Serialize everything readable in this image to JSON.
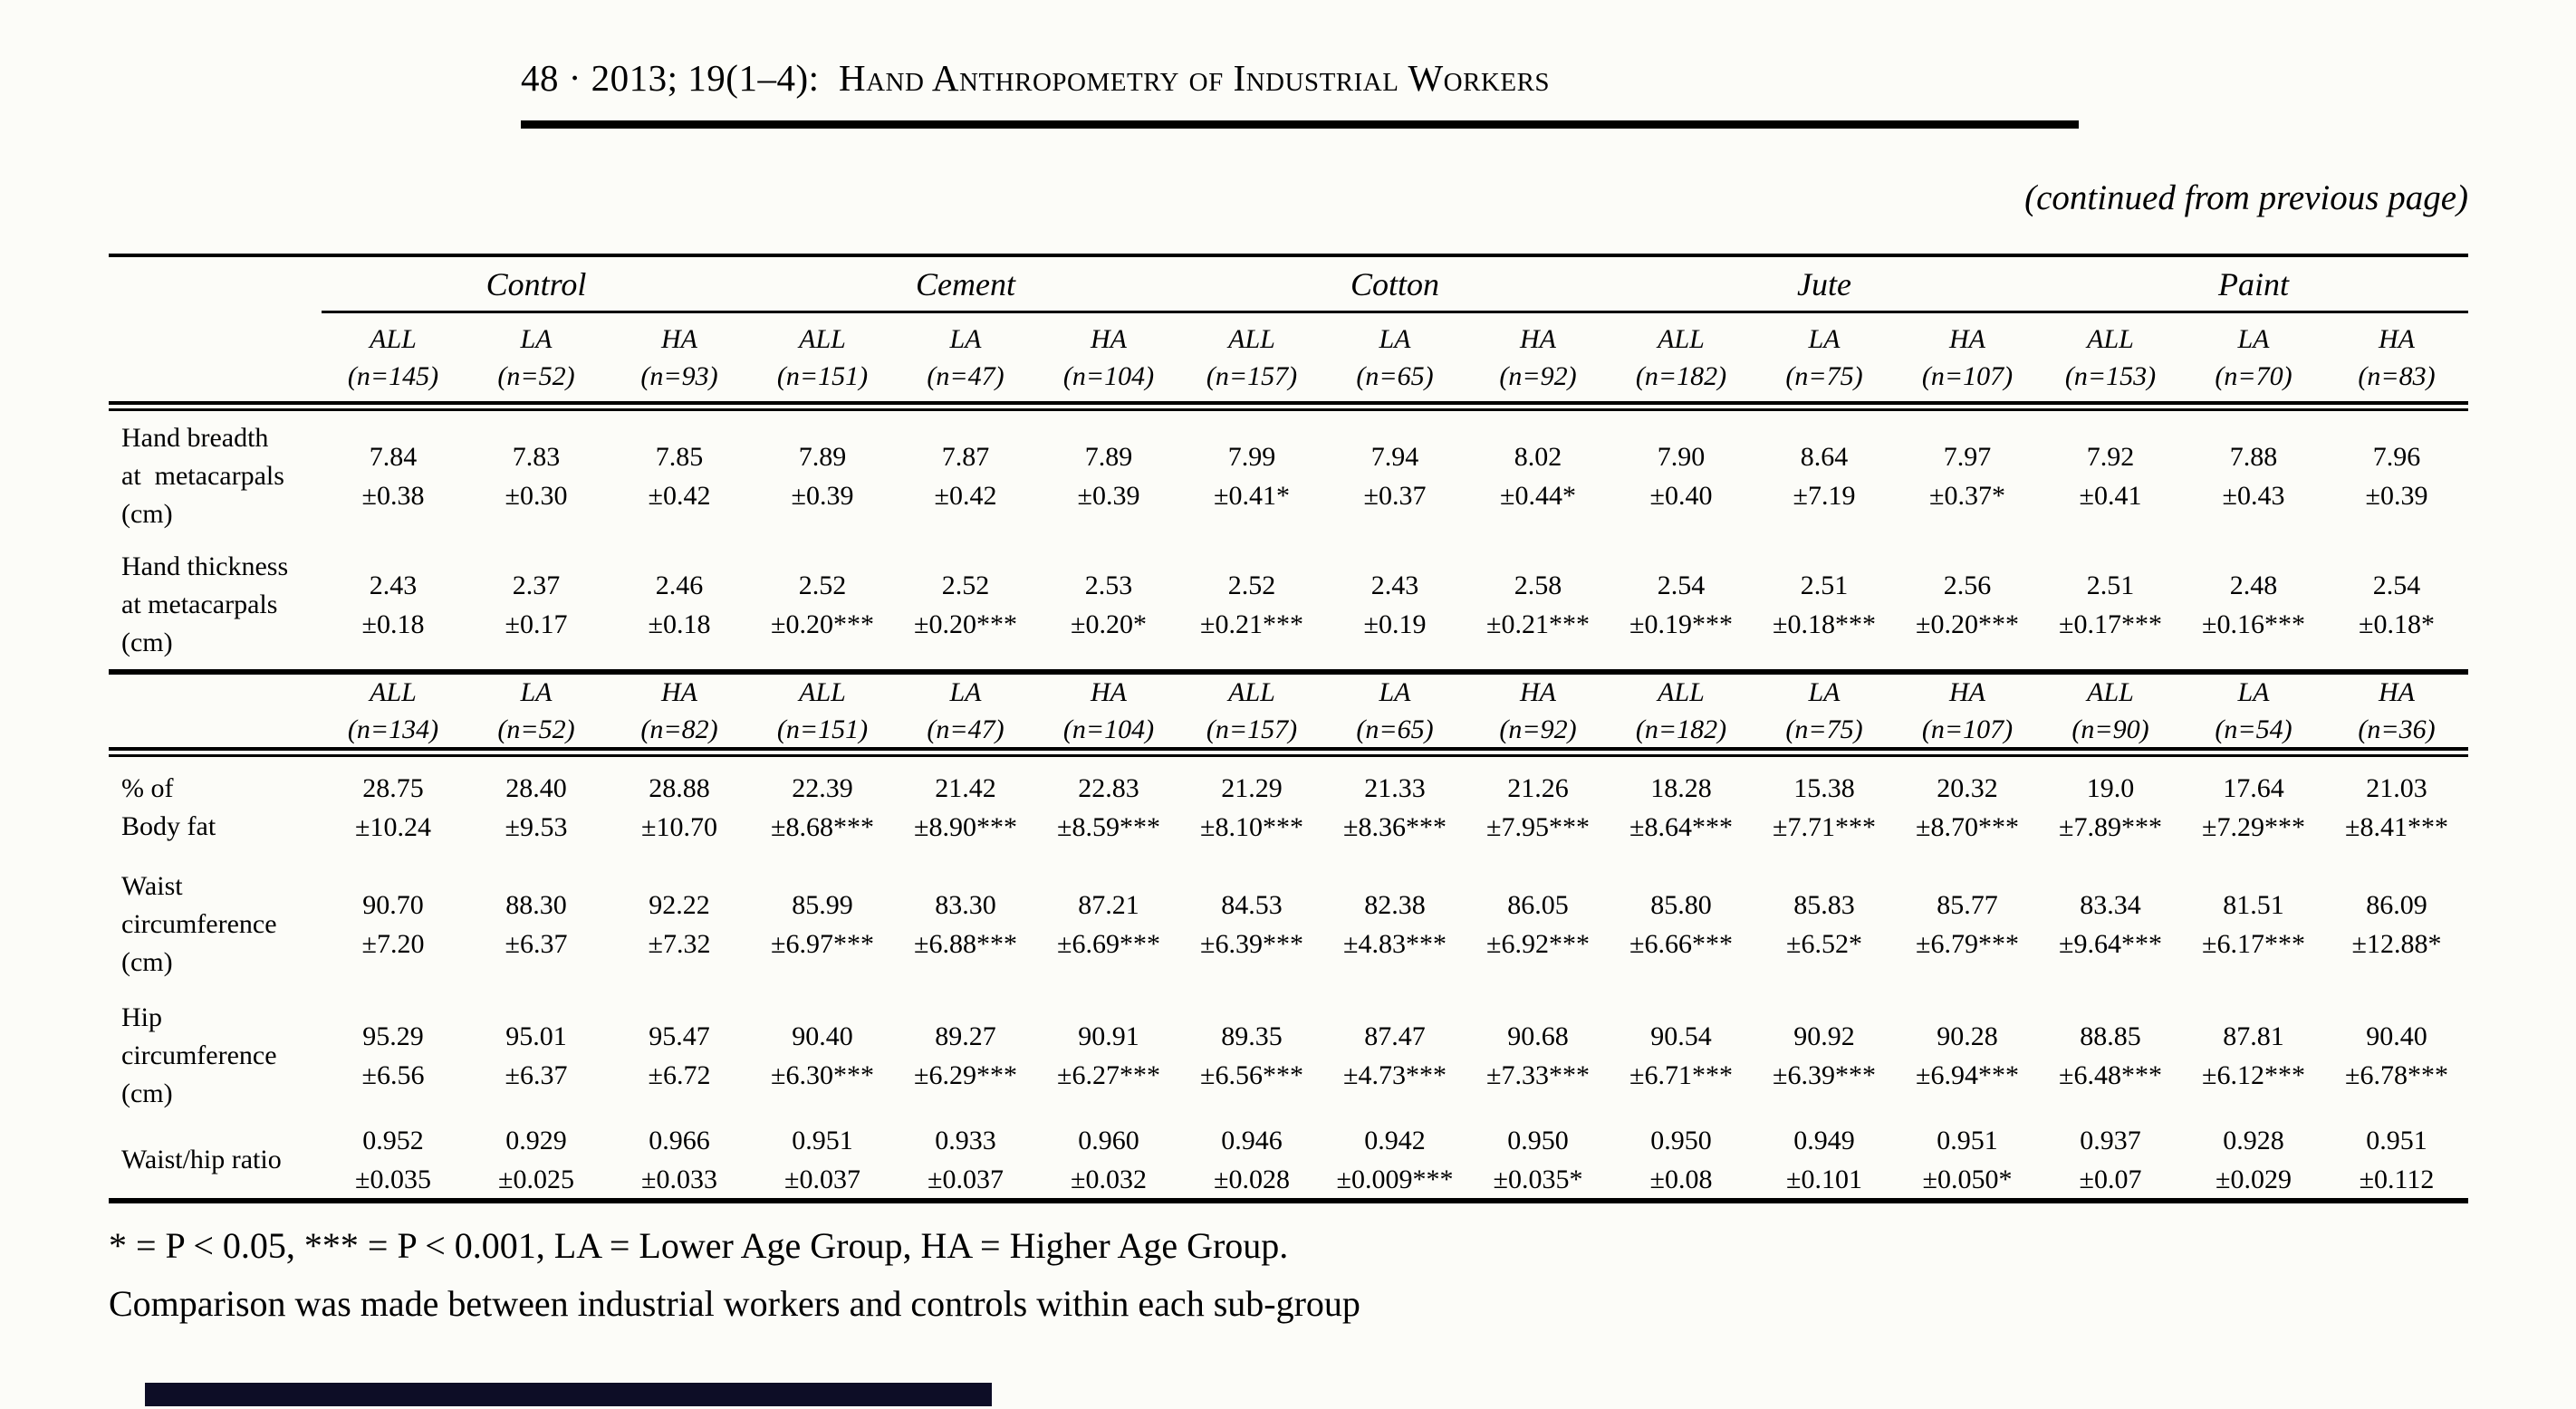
{
  "page": {
    "journal_header": "48 · 2013; 19(1–4):  Hand Anthropometry of Industrial Workers",
    "continued_note": "(continued from previous page)",
    "footnote_line1": "* = P < 0.05, *** = P < 0.001, LA = Lower Age Group, HA = Higher Age Group.",
    "footnote_line2": "Comparison was made between industrial workers and controls within each sub-group"
  },
  "table": {
    "group_headers": [
      "Control",
      "Cement",
      "Cotton",
      "Jute",
      "Paint"
    ],
    "subheader_top": [
      [
        "ALL",
        "(n=145)"
      ],
      [
        "LA",
        "(n=52)"
      ],
      [
        "HA",
        "(n=93)"
      ],
      [
        "ALL",
        "(n=151)"
      ],
      [
        "LA",
        "(n=47)"
      ],
      [
        "HA",
        "(n=104)"
      ],
      [
        "ALL",
        "(n=157)"
      ],
      [
        "LA",
        "(n=65)"
      ],
      [
        "HA",
        "(n=92)"
      ],
      [
        "ALL",
        "(n=182)"
      ],
      [
        "LA",
        "(n=75)"
      ],
      [
        "HA",
        "(n=107)"
      ],
      [
        "ALL",
        "(n=153)"
      ],
      [
        "LA",
        "(n=70)"
      ],
      [
        "HA",
        "(n=83)"
      ]
    ],
    "subheader_mid": [
      [
        "ALL",
        "(n=134)"
      ],
      [
        "LA",
        "(n=52)"
      ],
      [
        "HA",
        "(n=82)"
      ],
      [
        "ALL",
        "(n=151)"
      ],
      [
        "LA",
        "(n=47)"
      ],
      [
        "HA",
        "(n=104)"
      ],
      [
        "ALL",
        "(n=157)"
      ],
      [
        "LA",
        "(n=65)"
      ],
      [
        "HA",
        "(n=92)"
      ],
      [
        "ALL",
        "(n=182)"
      ],
      [
        "LA",
        "(n=75)"
      ],
      [
        "HA",
        "(n=107)"
      ],
      [
        "ALL",
        "(n=90)"
      ],
      [
        "LA",
        "(n=54)"
      ],
      [
        "HA",
        "(n=36)"
      ]
    ],
    "rows_top": [
      {
        "label_lines": [
          "Hand breadth",
          "at  metacarpals",
          "(cm)"
        ],
        "cells": [
          [
            "7.84",
            "±0.38"
          ],
          [
            "7.83",
            "±0.30"
          ],
          [
            "7.85",
            "±0.42"
          ],
          [
            "7.89",
            "±0.39"
          ],
          [
            "7.87",
            "±0.42"
          ],
          [
            "7.89",
            "±0.39"
          ],
          [
            "7.99",
            "±0.41*"
          ],
          [
            "7.94",
            "±0.37"
          ],
          [
            "8.02",
            "±0.44*"
          ],
          [
            "7.90",
            "±0.40"
          ],
          [
            "8.64",
            "±7.19"
          ],
          [
            "7.97",
            "±0.37*"
          ],
          [
            "7.92",
            "±0.41"
          ],
          [
            "7.88",
            "±0.43"
          ],
          [
            "7.96",
            "±0.39"
          ]
        ]
      },
      {
        "label_lines": [
          "Hand thickness",
          "at metacarpals",
          "(cm)"
        ],
        "cells": [
          [
            "2.43",
            "±0.18"
          ],
          [
            "2.37",
            "±0.17"
          ],
          [
            "2.46",
            "±0.18"
          ],
          [
            "2.52",
            "±0.20***"
          ],
          [
            "2.52",
            "±0.20***"
          ],
          [
            "2.53",
            "±0.20*"
          ],
          [
            "2.52",
            "±0.21***"
          ],
          [
            "2.43",
            "±0.19"
          ],
          [
            "2.58",
            "±0.21***"
          ],
          [
            "2.54",
            "±0.19***"
          ],
          [
            "2.51",
            "±0.18***"
          ],
          [
            "2.56",
            "±0.20***"
          ],
          [
            "2.51",
            "±0.17***"
          ],
          [
            "2.48",
            "±0.16***"
          ],
          [
            "2.54",
            "±0.18*"
          ]
        ]
      }
    ],
    "rows_bottom": [
      {
        "label_lines": [
          "% of",
          "Body fat"
        ],
        "cells": [
          [
            "28.75",
            "±10.24"
          ],
          [
            "28.40",
            "±9.53"
          ],
          [
            "28.88",
            "±10.70"
          ],
          [
            "22.39",
            "±8.68***"
          ],
          [
            "21.42",
            "±8.90***"
          ],
          [
            "22.83",
            "±8.59***"
          ],
          [
            "21.29",
            "±8.10***"
          ],
          [
            "21.33",
            "±8.36***"
          ],
          [
            "21.26",
            "±7.95***"
          ],
          [
            "18.28",
            "±8.64***"
          ],
          [
            "15.38",
            "±7.71***"
          ],
          [
            "20.32",
            "±8.70***"
          ],
          [
            "19.0",
            "±7.89***"
          ],
          [
            "17.64",
            "±7.29***"
          ],
          [
            "21.03",
            "±8.41***"
          ]
        ]
      },
      {
        "label_lines": [
          "Waist",
          "circumference",
          "(cm)"
        ],
        "cells": [
          [
            "90.70",
            "±7.20"
          ],
          [
            "88.30",
            "±6.37"
          ],
          [
            "92.22",
            "±7.32"
          ],
          [
            "85.99",
            "±6.97***"
          ],
          [
            "83.30",
            "±6.88***"
          ],
          [
            "87.21",
            "±6.69***"
          ],
          [
            "84.53",
            "±6.39***"
          ],
          [
            "82.38",
            "±4.83***"
          ],
          [
            "86.05",
            "±6.92***"
          ],
          [
            "85.80",
            "±6.66***"
          ],
          [
            "85.83",
            "±6.52*"
          ],
          [
            "85.77",
            "±6.79***"
          ],
          [
            "83.34",
            "±9.64***"
          ],
          [
            "81.51",
            "±6.17***"
          ],
          [
            "86.09",
            "±12.88*"
          ]
        ]
      },
      {
        "label_lines": [
          "Hip",
          "circumference",
          "(cm)"
        ],
        "cells": [
          [
            "95.29",
            "±6.56"
          ],
          [
            "95.01",
            "±6.37"
          ],
          [
            "95.47",
            "±6.72"
          ],
          [
            "90.40",
            "±6.30***"
          ],
          [
            "89.27",
            "±6.29***"
          ],
          [
            "90.91",
            "±6.27***"
          ],
          [
            "89.35",
            "±6.56***"
          ],
          [
            "87.47",
            "±4.73***"
          ],
          [
            "90.68",
            "±7.33***"
          ],
          [
            "90.54",
            "±6.71***"
          ],
          [
            "90.92",
            "±6.39***"
          ],
          [
            "90.28",
            "±6.94***"
          ],
          [
            "88.85",
            "±6.48***"
          ],
          [
            "87.81",
            "±6.12***"
          ],
          [
            "90.40",
            "±6.78***"
          ]
        ]
      },
      {
        "label_lines": [
          "Waist/hip ratio"
        ],
        "cells": [
          [
            "0.952",
            "±0.035"
          ],
          [
            "0.929",
            "±0.025"
          ],
          [
            "0.966",
            "±0.033"
          ],
          [
            "0.951",
            "±0.037"
          ],
          [
            "0.933",
            "±0.037"
          ],
          [
            "0.960",
            "±0.032"
          ],
          [
            "0.946",
            "±0.028"
          ],
          [
            "0.942",
            "±0.009***"
          ],
          [
            "0.950",
            "±0.035*"
          ],
          [
            "0.950",
            "±0.08"
          ],
          [
            "0.949",
            "±0.101"
          ],
          [
            "0.951",
            "±0.050*"
          ],
          [
            "0.937",
            "±0.07"
          ],
          [
            "0.928",
            "±0.029"
          ],
          [
            "0.951",
            "±0.112"
          ]
        ]
      }
    ]
  }
}
